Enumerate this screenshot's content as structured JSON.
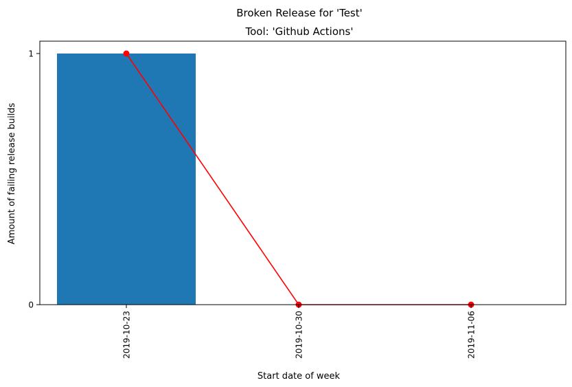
{
  "chart_data": {
    "type": "bar",
    "title": "Broken Release for 'Test'",
    "subtitle": "Tool: 'Github Actions'",
    "xlabel": "Start date of week",
    "ylabel": "Amount of failing release builds",
    "categories": [
      "2019-10-23",
      "2019-10-30",
      "2019-11-06"
    ],
    "yticks": [
      "0",
      "1"
    ],
    "ylim": [
      0,
      1
    ],
    "grid": false,
    "series": [
      {
        "type": "bar",
        "values": [
          1,
          0,
          0
        ],
        "color": "#1f77b4"
      },
      {
        "type": "line",
        "marker": "circle",
        "values": [
          1,
          0,
          0
        ],
        "color": "#ff0000"
      }
    ]
  }
}
